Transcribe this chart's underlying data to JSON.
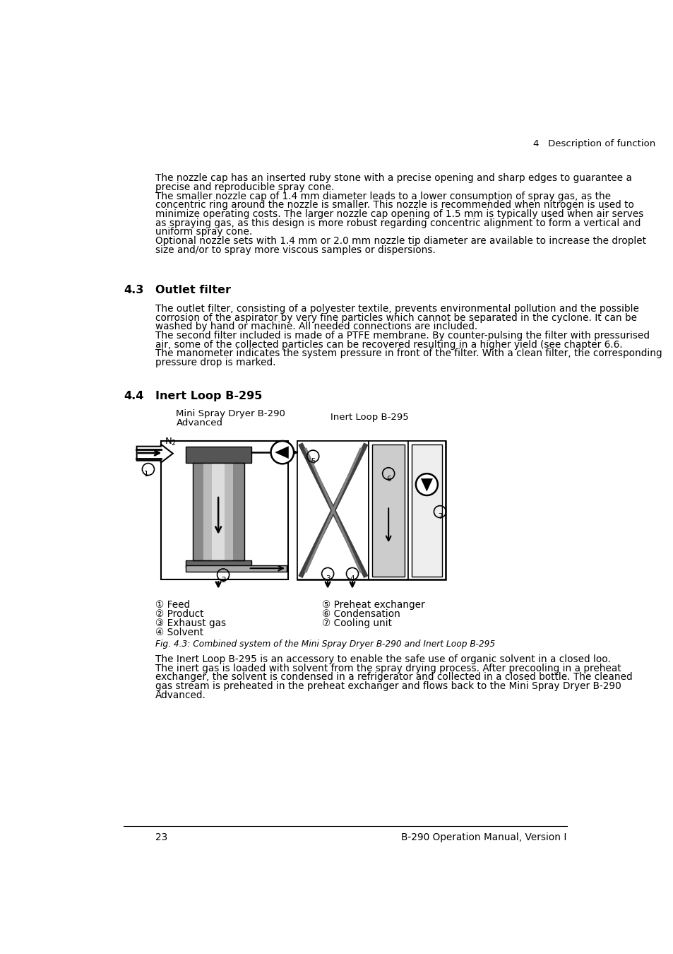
{
  "page_header": "4   Description of function",
  "para1_lines": [
    "The nozzle cap has an inserted ruby stone with a precise opening and sharp edges to guarantee a",
    "precise and reproducible spray cone.",
    "The smaller nozzle cap of 1.4 mm diameter leads to a lower consumption of spray gas, as the",
    "concentric ring around the nozzle is smaller. This nozzle is recommended when nitrogen is used to",
    "minimize operating costs. The larger nozzle cap opening of 1.5 mm is typically used when air serves",
    "as spraying gas, as this design is more robust regarding concentric alignment to form a vertical and",
    "uniform spray cone.",
    "Optional nozzle sets with 1.4 mm or 2.0 mm nozzle tip diameter are available to increase the droplet",
    "size and/or to spray more viscous samples or dispersions."
  ],
  "sec43_num": "4.3",
  "sec43_title": "Outlet filter",
  "para2_lines": [
    "The outlet filter, consisting of a polyester textile, prevents environmental pollution and the possible",
    "corrosion of the aspirator by very fine particles which cannot be separated in the cyclone. It can be",
    "washed by hand or machine. All needed connections are included.",
    "The second filter included is made of a PTFE membrane. By counter-pulsing the filter with pressurised",
    "air, some of the collected particles can be recovered resulting in a higher yield (see chapter 6.6.",
    "The manometer indicates the system pressure in front of the filter. With a clean filter, the corresponding",
    "pressure drop is marked."
  ],
  "sec44_num": "4.4",
  "sec44_title": "Inert Loop B-295",
  "diag_label_left_1": "Mini Spray Dryer B-290",
  "diag_label_left_2": "Advanced",
  "diag_label_right": "Inert Loop B-295",
  "legend_left": [
    "① Feed",
    "② Product",
    "③ Exhaust gas",
    "④ Solvent"
  ],
  "legend_right": [
    "⑤ Preheat exchanger",
    "⑥ Condensation",
    "⑦ Cooling unit"
  ],
  "fig_caption": "Fig. 4.3: Combined system of the Mini Spray Dryer B-290 and Inert Loop B-295",
  "para3_lines": [
    "The Inert Loop B-295 is an accessory to enable the safe use of organic solvent in a closed loo.",
    "The inert gas is loaded with solvent from the spray drying process. After precooling in a preheat",
    "exchanger, the solvent is condensed in a refrigerator and collected in a closed bottle. The cleaned",
    "gas stream is preheated in the preheat exchanger and flows back to the Mini Spray Dryer B-290",
    "Advanced."
  ],
  "page_num": "23",
  "page_footer": "B-290 Operation Manual, Version I",
  "bg_color": "#ffffff",
  "text_color": "#000000"
}
